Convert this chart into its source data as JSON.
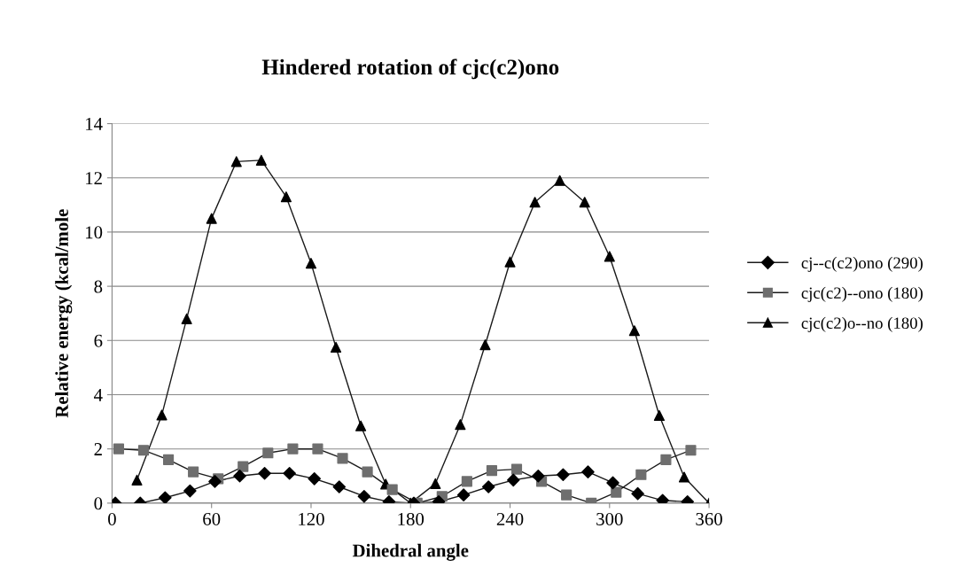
{
  "chart_data": {
    "type": "line",
    "title": "Hindered rotation of cjc(c2)ono",
    "xlabel": "Dihedral angle",
    "ylabel": "Relative energy (kcal/mole",
    "xlim": [
      0,
      360
    ],
    "xticks": [
      0,
      60,
      120,
      180,
      240,
      300,
      360
    ],
    "ylim": [
      0,
      14
    ],
    "yticks": [
      0,
      2,
      4,
      6,
      8,
      10,
      12,
      14
    ],
    "grid": "y",
    "legend": "right",
    "line_style": "solid",
    "series": [
      {
        "name": "cj--c(c2)ono (290)",
        "color": "#000000",
        "marker": "diamond",
        "x": [
          2,
          17,
          32,
          47,
          62,
          77,
          92,
          107,
          122,
          137,
          152,
          167,
          182,
          197,
          212,
          227,
          242,
          257,
          272,
          287,
          302,
          317,
          332,
          347
        ],
        "values": [
          0,
          0,
          0.2,
          0.45,
          0.8,
          1.0,
          1.1,
          1.1,
          0.9,
          0.6,
          0.25,
          0.05,
          0,
          0.05,
          0.3,
          0.6,
          0.85,
          1.0,
          1.05,
          1.15,
          0.75,
          0.35,
          0.1,
          0.05
        ]
      },
      {
        "name": "cjc(c2)--ono (180)",
        "color": "#6e6e6e",
        "marker": "square",
        "x": [
          4,
          19,
          34,
          49,
          64,
          79,
          94,
          109,
          124,
          139,
          154,
          169,
          184,
          199,
          214,
          229,
          244,
          259,
          274,
          289,
          304,
          319,
          334,
          349
        ],
        "values": [
          2.0,
          1.95,
          1.6,
          1.15,
          0.9,
          1.35,
          1.85,
          2.0,
          2.0,
          1.65,
          1.15,
          0.5,
          0,
          0.25,
          0.8,
          1.2,
          1.25,
          0.8,
          0.3,
          0,
          0.4,
          1.05,
          1.6,
          1.95
        ]
      },
      {
        "name": "cjc(c2)o--no (180)",
        "color": "#000000",
        "marker": "triangle",
        "x": [
          15,
          30,
          45,
          60,
          75,
          90,
          105,
          120,
          135,
          150,
          165,
          180,
          195,
          210,
          225,
          240,
          255,
          270,
          285,
          300,
          315,
          330,
          345,
          360
        ],
        "values": [
          0.85,
          3.25,
          6.8,
          10.5,
          12.6,
          12.65,
          11.3,
          8.85,
          5.75,
          2.85,
          0.7,
          0,
          0.72,
          2.9,
          5.84,
          8.9,
          11.1,
          11.9,
          11.1,
          9.1,
          6.36,
          3.23,
          0.96,
          0
        ]
      }
    ]
  }
}
